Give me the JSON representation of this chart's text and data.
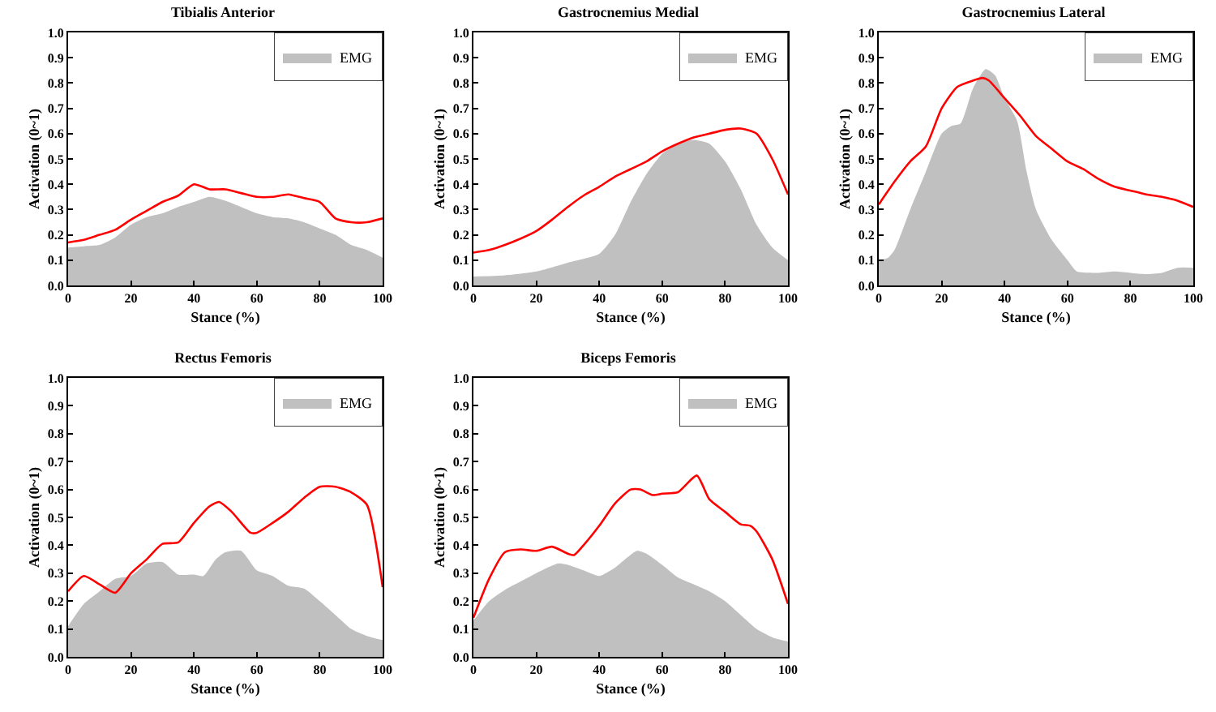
{
  "chart_data": [
    {
      "type": "area",
      "title": "Tibialis Anterior",
      "xlabel": "Stance (%)",
      "ylabel": "Activation (0~1)",
      "xlim": [
        0,
        100
      ],
      "xticks": [
        0,
        20,
        40,
        60,
        80,
        100
      ],
      "ylim": [
        0,
        1
      ],
      "yticks": [
        {
          "value": 0,
          "label": "0.0"
        },
        {
          "value": 0.1,
          "label": "0.1"
        },
        {
          "value": 0.2,
          "label": "0.2"
        },
        {
          "value": 0.3,
          "label": "0.3"
        },
        {
          "value": 0.4,
          "label": "0.4"
        },
        {
          "value": 0.5,
          "label": "0.5"
        },
        {
          "value": 0.6,
          "label": "0.6"
        },
        {
          "value": 0.7,
          "label": "0.7"
        },
        {
          "value": 0.8,
          "label": "0.8"
        },
        {
          "value": 0.9,
          "label": "0.9"
        },
        {
          "value": 1,
          "label": "1.0"
        }
      ],
      "grid": false,
      "legend": "top right",
      "series": [
        {
          "name": "EMG",
          "color": "#c0c0c0",
          "x": [
            0,
            5,
            10,
            15,
            20,
            25,
            30,
            35,
            40,
            45,
            50,
            55,
            60,
            65,
            70,
            75,
            80,
            85,
            90,
            95,
            100
          ],
          "values": [
            0.15,
            0.155,
            0.16,
            0.19,
            0.24,
            0.27,
            0.285,
            0.31,
            0.33,
            0.35,
            0.335,
            0.31,
            0.285,
            0.27,
            0.265,
            0.25,
            0.225,
            0.2,
            0.16,
            0.14,
            0.11
          ]
        },
        {
          "type": "line",
          "color": "#ff0000",
          "x": [
            0,
            5,
            10,
            15,
            20,
            25,
            30,
            35,
            40,
            45,
            50,
            55,
            60,
            65,
            70,
            75,
            80,
            85,
            90,
            95,
            100
          ],
          "values": [
            0.17,
            0.18,
            0.2,
            0.22,
            0.26,
            0.295,
            0.33,
            0.355,
            0.4,
            0.38,
            0.38,
            0.365,
            0.35,
            0.35,
            0.36,
            0.345,
            0.33,
            0.265,
            0.25,
            0.25,
            0.265
          ]
        }
      ]
    },
    {
      "type": "area",
      "title": "Gastrocnemius Medial",
      "xlabel": "Stance (%)",
      "ylabel": "Activation (0~1)",
      "xlim": [
        0,
        100
      ],
      "xticks": [
        0,
        20,
        40,
        60,
        80,
        100
      ],
      "ylim": [
        0,
        1
      ],
      "yticks": [
        {
          "value": 0,
          "label": "0.0"
        },
        {
          "value": 0.1,
          "label": "0.1"
        },
        {
          "value": 0.2,
          "label": "0.2"
        },
        {
          "value": 0.3,
          "label": "0.3"
        },
        {
          "value": 0.4,
          "label": "0.4"
        },
        {
          "value": 0.5,
          "label": "0.5"
        },
        {
          "value": 0.6,
          "label": "0.6"
        },
        {
          "value": 0.7,
          "label": "0.7"
        },
        {
          "value": 0.8,
          "label": "0.8"
        },
        {
          "value": 0.9,
          "label": "0.9"
        },
        {
          "value": 1,
          "label": "1.0"
        }
      ],
      "grid": false,
      "legend": "top right",
      "series": [
        {
          "name": "EMG",
          "color": "#c0c0c0",
          "x": [
            0,
            10,
            20,
            30,
            40,
            45,
            50,
            55,
            60,
            65,
            70,
            75,
            80,
            85,
            90,
            95,
            100
          ],
          "values": [
            0.035,
            0.04,
            0.055,
            0.09,
            0.125,
            0.2,
            0.33,
            0.44,
            0.52,
            0.56,
            0.575,
            0.56,
            0.49,
            0.38,
            0.24,
            0.15,
            0.1
          ]
        },
        {
          "type": "line",
          "color": "#ff0000",
          "x": [
            0,
            5,
            10,
            15,
            20,
            25,
            30,
            35,
            40,
            45,
            50,
            55,
            60,
            65,
            70,
            75,
            80,
            85,
            90,
            95,
            100
          ],
          "values": [
            0.13,
            0.14,
            0.16,
            0.185,
            0.215,
            0.26,
            0.31,
            0.355,
            0.39,
            0.43,
            0.46,
            0.49,
            0.53,
            0.56,
            0.585,
            0.6,
            0.615,
            0.62,
            0.6,
            0.5,
            0.36
          ]
        }
      ]
    },
    {
      "type": "area",
      "title": "Gastrocnemius Lateral",
      "xlabel": "Stance (%)",
      "ylabel": "Activation (0~1)",
      "xlim": [
        0,
        100
      ],
      "xticks": [
        0,
        20,
        40,
        60,
        80,
        100
      ],
      "ylim": [
        0,
        1
      ],
      "yticks": [
        {
          "value": 0,
          "label": "0.0"
        },
        {
          "value": 0.1,
          "label": "0.1"
        },
        {
          "value": 0.2,
          "label": "0.2"
        },
        {
          "value": 0.3,
          "label": "0.3"
        },
        {
          "value": 0.4,
          "label": "0.4"
        },
        {
          "value": 0.5,
          "label": "0.5"
        },
        {
          "value": 0.6,
          "label": "0.6"
        },
        {
          "value": 0.7,
          "label": "0.7"
        },
        {
          "value": 0.8,
          "label": "0.8"
        },
        {
          "value": 0.9,
          "label": "0.9"
        },
        {
          "value": 1,
          "label": "1.0"
        }
      ],
      "grid": false,
      "legend": "top right",
      "series": [
        {
          "name": "EMG",
          "color": "#c0c0c0",
          "x": [
            0,
            3,
            5,
            10,
            15,
            20,
            23,
            26,
            30,
            34,
            37,
            40,
            44,
            47,
            50,
            55,
            60,
            63,
            70,
            75,
            80,
            85,
            90,
            95,
            100
          ],
          "values": [
            0.1,
            0.11,
            0.14,
            0.3,
            0.45,
            0.6,
            0.63,
            0.64,
            0.78,
            0.855,
            0.83,
            0.74,
            0.65,
            0.45,
            0.3,
            0.18,
            0.1,
            0.055,
            0.05,
            0.055,
            0.05,
            0.045,
            0.05,
            0.07,
            0.07
          ]
        },
        {
          "type": "line",
          "color": "#ff0000",
          "x": [
            0,
            5,
            10,
            15,
            20,
            25,
            30,
            33,
            35,
            40,
            45,
            50,
            55,
            60,
            65,
            70,
            75,
            80,
            85,
            90,
            95,
            100
          ],
          "values": [
            0.32,
            0.41,
            0.49,
            0.55,
            0.7,
            0.785,
            0.81,
            0.82,
            0.81,
            0.74,
            0.67,
            0.59,
            0.54,
            0.49,
            0.46,
            0.42,
            0.39,
            0.375,
            0.36,
            0.35,
            0.335,
            0.31
          ]
        }
      ]
    },
    {
      "type": "area",
      "title": "Rectus Femoris",
      "xlabel": "Stance (%)",
      "ylabel": "Activation (0~1)",
      "xlim": [
        0,
        100
      ],
      "xticks": [
        0,
        20,
        40,
        60,
        80,
        100
      ],
      "ylim": [
        0,
        1
      ],
      "yticks": [
        {
          "value": 0,
          "label": "0.0"
        },
        {
          "value": 0.1,
          "label": "0.1"
        },
        {
          "value": 0.2,
          "label": "0.2"
        },
        {
          "value": 0.3,
          "label": "0.3"
        },
        {
          "value": 0.4,
          "label": "0.4"
        },
        {
          "value": 0.5,
          "label": "0.5"
        },
        {
          "value": 0.6,
          "label": "0.6"
        },
        {
          "value": 0.7,
          "label": "0.7"
        },
        {
          "value": 0.8,
          "label": "0.8"
        },
        {
          "value": 0.9,
          "label": "0.9"
        },
        {
          "value": 1,
          "label": "1.0"
        }
      ],
      "grid": false,
      "legend": "top right",
      "series": [
        {
          "name": "EMG",
          "color": "#c0c0c0",
          "x": [
            0,
            5,
            10,
            15,
            20,
            25,
            30,
            35,
            40,
            43,
            47,
            50,
            55,
            60,
            65,
            70,
            75,
            80,
            85,
            90,
            95,
            100
          ],
          "values": [
            0.11,
            0.19,
            0.235,
            0.28,
            0.29,
            0.335,
            0.34,
            0.295,
            0.295,
            0.29,
            0.35,
            0.375,
            0.38,
            0.31,
            0.29,
            0.255,
            0.245,
            0.2,
            0.15,
            0.1,
            0.075,
            0.06
          ]
        },
        {
          "type": "line",
          "color": "#ff0000",
          "x": [
            0,
            5,
            10,
            15,
            20,
            25,
            30,
            35,
            40,
            45,
            48,
            52,
            58,
            60,
            65,
            70,
            75,
            80,
            85,
            90,
            95,
            100
          ],
          "values": [
            0.235,
            0.29,
            0.26,
            0.23,
            0.3,
            0.35,
            0.405,
            0.41,
            0.48,
            0.54,
            0.555,
            0.52,
            0.445,
            0.445,
            0.48,
            0.52,
            0.57,
            0.61,
            0.61,
            0.59,
            0.545,
            0.25
          ]
        }
      ]
    },
    {
      "type": "area",
      "title": "Biceps Femoris",
      "xlabel": "Stance (%)",
      "ylabel": "Activation (0~1)",
      "xlim": [
        0,
        100
      ],
      "xticks": [
        0,
        20,
        40,
        60,
        80,
        100
      ],
      "ylim": [
        0,
        1
      ],
      "yticks": [
        {
          "value": 0,
          "label": "0.0"
        },
        {
          "value": 0.1,
          "label": "0.1"
        },
        {
          "value": 0.2,
          "label": "0.2"
        },
        {
          "value": 0.3,
          "label": "0.3"
        },
        {
          "value": 0.4,
          "label": "0.4"
        },
        {
          "value": 0.5,
          "label": "0.5"
        },
        {
          "value": 0.6,
          "label": "0.6"
        },
        {
          "value": 0.7,
          "label": "0.7"
        },
        {
          "value": 0.8,
          "label": "0.8"
        },
        {
          "value": 0.9,
          "label": "0.9"
        },
        {
          "value": 1,
          "label": "1.0"
        }
      ],
      "grid": false,
      "legend": "top right",
      "series": [
        {
          "name": "EMG",
          "color": "#c0c0c0",
          "x": [
            0,
            5,
            10,
            15,
            20,
            27,
            30,
            35,
            40,
            45,
            52,
            55,
            60,
            65,
            70,
            75,
            80,
            85,
            90,
            95,
            100
          ],
          "values": [
            0.13,
            0.2,
            0.24,
            0.27,
            0.3,
            0.335,
            0.33,
            0.31,
            0.29,
            0.32,
            0.38,
            0.37,
            0.33,
            0.285,
            0.26,
            0.235,
            0.2,
            0.15,
            0.1,
            0.07,
            0.055
          ]
        },
        {
          "type": "line",
          "color": "#ff0000",
          "x": [
            0,
            5,
            10,
            15,
            20,
            25,
            30,
            32,
            35,
            40,
            45,
            50,
            53,
            57,
            60,
            65,
            71,
            75,
            80,
            85,
            88,
            90,
            95,
            100
          ],
          "values": [
            0.14,
            0.28,
            0.375,
            0.385,
            0.38,
            0.395,
            0.37,
            0.365,
            0.4,
            0.47,
            0.55,
            0.6,
            0.6,
            0.58,
            0.585,
            0.59,
            0.65,
            0.565,
            0.52,
            0.475,
            0.47,
            0.45,
            0.35,
            0.19
          ]
        }
      ]
    }
  ]
}
